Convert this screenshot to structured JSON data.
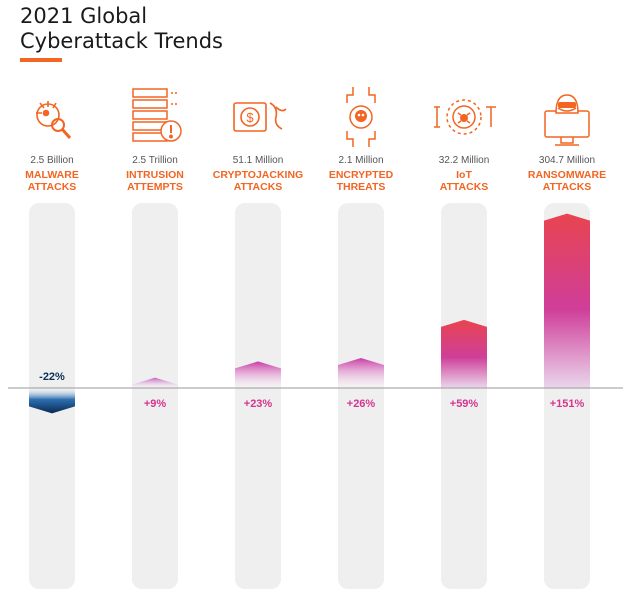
{
  "title_lines": [
    "2021 Global",
    "Cyberattack Trends"
  ],
  "colors": {
    "accent": "#f26522",
    "negative": "#0b2f5a",
    "positive_text": "#d4358e",
    "track": "#efefef"
  },
  "chart_data": {
    "type": "bar",
    "categories": [
      [
        "MALWARE",
        "ATTACKS"
      ],
      [
        "INTRUSION",
        "ATTEMPTS"
      ],
      [
        "CRYPTOJACKING",
        "ATTACKS"
      ],
      [
        "ENCRYPTED",
        "THREATS"
      ],
      [
        "IoT",
        "ATTACKS"
      ],
      [
        "RANSOMWARE",
        "ATTACKS"
      ]
    ],
    "totals": [
      "2.5 Billion",
      "2.5 Trillion",
      "51.1 Million",
      "2.1 Million",
      "32.2 Million",
      "304.7 Million"
    ],
    "values": [
      -22,
      9,
      23,
      26,
      59,
      151
    ],
    "value_labels": [
      "-22%",
      "+9%",
      "+23%",
      "+26%",
      "+59%",
      "+151%"
    ],
    "icons": [
      "malware-icon",
      "server-alert-icon",
      "cryptojacking-icon",
      "encrypted-threat-icon",
      "iot-icon",
      "ransomware-icon"
    ],
    "baseline": 0,
    "ylim": [
      -35,
      180
    ]
  }
}
